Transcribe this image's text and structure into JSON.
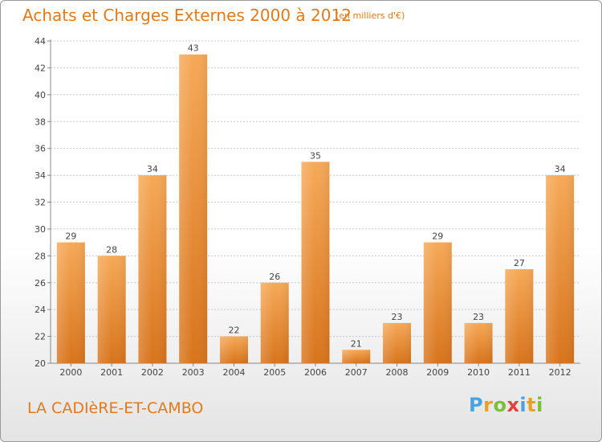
{
  "title": "Achats et Charges Externes 2000 à 2012",
  "subtitle": "(en milliers d'€)",
  "place": "LA CADIèRE-ET-CAMBO",
  "logo": {
    "letters": [
      "P",
      "r",
      "o",
      "x",
      "i",
      "t",
      "i"
    ],
    "colors": [
      "#4aa3df",
      "#e9a125",
      "#7bbf3a",
      "#e5413b",
      "#4aa3df",
      "#e9a125",
      "#7bbf3a"
    ]
  },
  "chart_data": {
    "type": "bar",
    "categories": [
      "2000",
      "2001",
      "2002",
      "2003",
      "2004",
      "2005",
      "2006",
      "2007",
      "2008",
      "2009",
      "2010",
      "2011",
      "2012"
    ],
    "values": [
      29,
      28,
      34,
      43,
      22,
      26,
      35,
      21,
      23,
      29,
      23,
      27,
      34
    ],
    "ylim": [
      20,
      44
    ],
    "yticks": [
      20,
      22,
      24,
      26,
      28,
      30,
      32,
      34,
      36,
      38,
      40,
      42,
      44
    ],
    "grid": true,
    "bar_color_top": "#f6a957",
    "bar_color_bottom": "#d8741c"
  }
}
